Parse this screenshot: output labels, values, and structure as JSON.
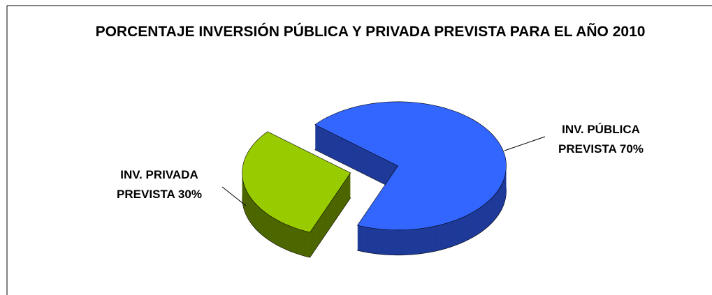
{
  "chart_data": {
    "type": "pie3d",
    "title": "PORCENTAJE INVERSIÓN PÚBLICA Y PRIVADA PREVISTA PARA EL AÑO 2010",
    "categories": [
      "INV. PÚBLICA PREVISTA",
      "INV. PRIVADA PREVISTA"
    ],
    "values": [
      70,
      30
    ],
    "value_labels": [
      "70%",
      "30%"
    ],
    "colors": [
      "#3366ff",
      "#99cc00"
    ],
    "side_colors": [
      "#1f3a99",
      "#4d6600"
    ]
  }
}
